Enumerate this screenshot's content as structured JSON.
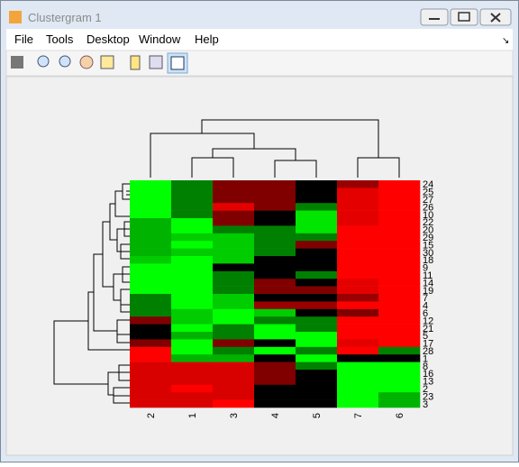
{
  "window": {
    "title": "Clustergram 1",
    "menu": [
      "File",
      "Tools",
      "Desktop",
      "Window",
      "Help"
    ]
  },
  "chart_data": {
    "type": "heatmap",
    "column_labels": [
      "2",
      "1",
      "3",
      "4",
      "5",
      "7",
      "6"
    ],
    "row_labels": [
      "24",
      "25",
      "27",
      "26",
      "10",
      "22",
      "20",
      "29",
      "15",
      "30",
      "18",
      "9",
      "11",
      "14",
      "19",
      "7",
      "4",
      "6",
      "12",
      "21",
      "5",
      "17",
      "28",
      "1",
      "8",
      "16",
      "13",
      "2",
      "23",
      "3"
    ],
    "values": [
      [
        -1,
        -0.5,
        0.5,
        0.5,
        0,
        0.6,
        1
      ],
      [
        -1,
        -0.5,
        0.5,
        0.5,
        0,
        0.9,
        1
      ],
      [
        -1,
        -0.5,
        0.5,
        0.5,
        0,
        0.9,
        1
      ],
      [
        -1,
        -0.5,
        0.9,
        0.5,
        -0.5,
        0.9,
        1
      ],
      [
        -1,
        -0.5,
        0.5,
        0,
        -0.9,
        0.9,
        1
      ],
      [
        -0.7,
        -1,
        0.5,
        0,
        -0.9,
        0.9,
        1
      ],
      [
        -0.7,
        -1,
        -0.5,
        -0.5,
        -0.9,
        1,
        1
      ],
      [
        -0.7,
        -0.8,
        -0.8,
        -0.5,
        -0.5,
        1,
        1
      ],
      [
        -0.7,
        -1,
        -0.8,
        -0.5,
        0.5,
        1,
        1
      ],
      [
        -0.7,
        -0.8,
        -0.8,
        -0.5,
        0,
        1,
        1
      ],
      [
        -0.8,
        -1,
        -0.8,
        0,
        0,
        1,
        1
      ],
      [
        -1,
        -1,
        0,
        0,
        0,
        1,
        1
      ],
      [
        -1,
        -1,
        -0.5,
        0,
        -0.5,
        1,
        1
      ],
      [
        -1,
        -1,
        -0.5,
        0.5,
        0,
        0.9,
        1
      ],
      [
        -1,
        -1,
        -0.5,
        0.5,
        0.5,
        0.9,
        1
      ],
      [
        -0.5,
        -1,
        -0.8,
        0,
        0,
        0.6,
        1
      ],
      [
        -0.5,
        -1,
        -0.8,
        0.6,
        0.6,
        1,
        1
      ],
      [
        -0.5,
        -0.8,
        -1,
        -0.8,
        0,
        0.5,
        1
      ],
      [
        0.5,
        -0.8,
        -1,
        -0.5,
        -0.5,
        1,
        1
      ],
      [
        0,
        -1,
        -0.5,
        -1,
        -0.5,
        1,
        1
      ],
      [
        0,
        -0.7,
        -0.5,
        -1,
        -1,
        1,
        1
      ],
      [
        0.5,
        -1,
        0.5,
        0,
        -1,
        0.9,
        1
      ],
      [
        1,
        -1,
        -0.5,
        -1,
        -0.5,
        1,
        -0.5
      ],
      [
        1,
        -0.7,
        -0.7,
        0,
        -1,
        0,
        0
      ],
      [
        0.85,
        0.85,
        0.85,
        0.5,
        -0.5,
        -1,
        -1
      ],
      [
        0.85,
        0.85,
        0.85,
        0.5,
        0,
        -1,
        -1
      ],
      [
        0.85,
        0.85,
        0.85,
        0.5,
        0,
        -1,
        -1
      ],
      [
        0.85,
        1,
        0.85,
        0,
        0,
        -1,
        -1
      ],
      [
        0.85,
        0.85,
        0.85,
        0,
        0,
        -1,
        -0.7
      ],
      [
        0.85,
        0.85,
        1,
        0,
        0,
        -1,
        -0.7
      ]
    ],
    "clim": [
      -1,
      1
    ],
    "colormap": [
      "#00ff00",
      "#000000",
      "#ff0000"
    ]
  }
}
